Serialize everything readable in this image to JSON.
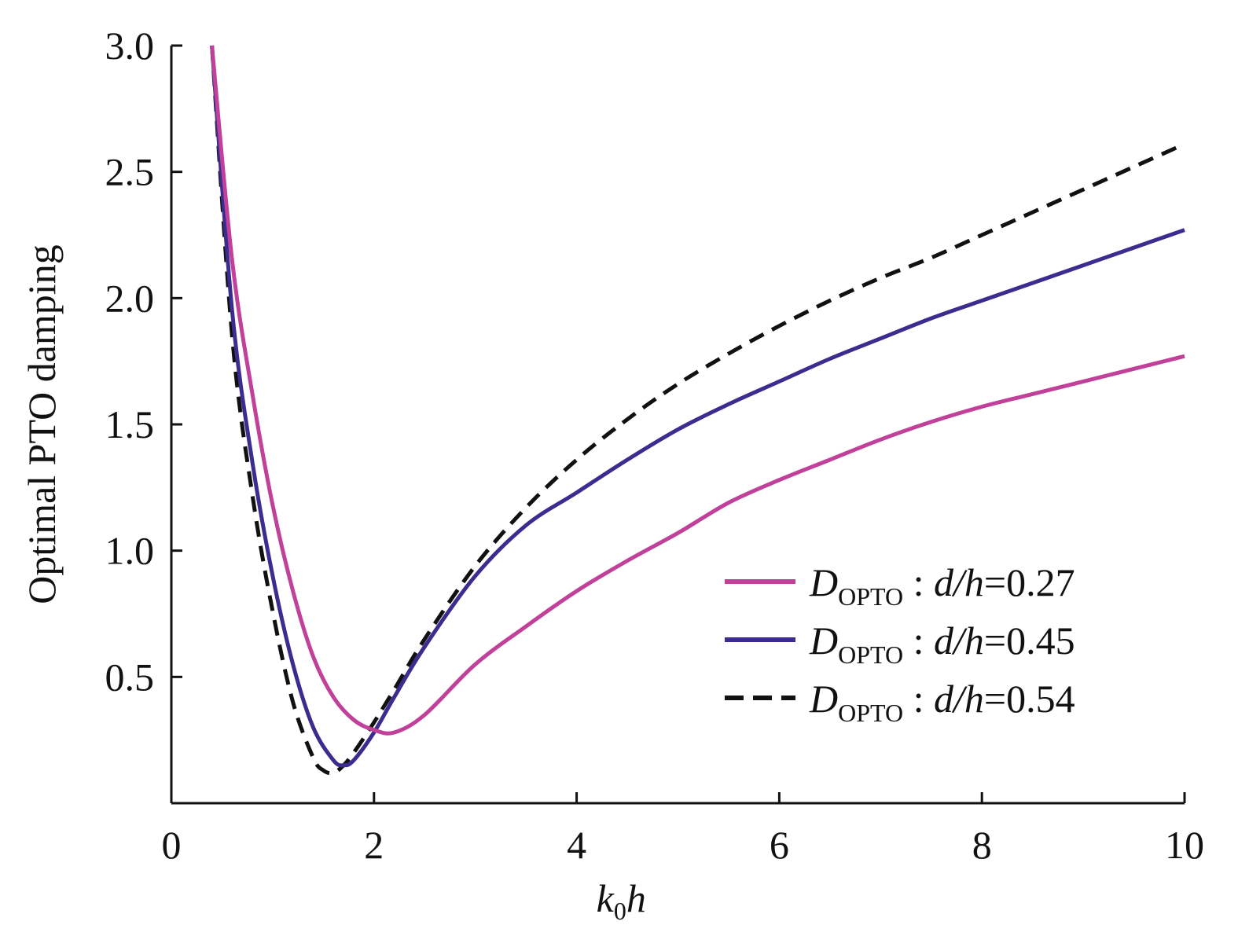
{
  "chart_data": {
    "type": "line",
    "ylabel": "Optimal PTO damping",
    "xlabel": {
      "main": "k",
      "sub": "0",
      "tail": "h"
    },
    "xlim": [
      0,
      10
    ],
    "ylim": [
      0.0,
      3.0
    ],
    "x_ticks": [
      0,
      2,
      4,
      6,
      8,
      10
    ],
    "x_tick_labels": [
      "0",
      "2",
      "4",
      "6",
      "8",
      "10"
    ],
    "y_ticks": [
      0.5,
      1.0,
      1.5,
      2.0,
      2.5,
      3.0
    ],
    "y_tick_labels": [
      "0.5",
      "1.0",
      "1.5",
      "2.0",
      "2.5",
      "3.0"
    ],
    "grid": false,
    "legend_position": "bottom-right",
    "series": [
      {
        "name": "D_OPTO : d/h = 0.27",
        "label": {
          "symbol": "D",
          "sub": "OPTO",
          "param": "d/h",
          "value": "0.27"
        },
        "color": "#c0409a",
        "style": "solid",
        "x": [
          0.4,
          0.6,
          0.8,
          1.0,
          1.2,
          1.4,
          1.6,
          1.8,
          2.0,
          2.2,
          2.5,
          3.0,
          3.5,
          4.0,
          4.5,
          5.0,
          5.5,
          6.0,
          6.5,
          7.0,
          7.5,
          8.0,
          8.5,
          9.0,
          9.5,
          10.0
        ],
        "y": [
          3.0,
          2.15,
          1.62,
          1.18,
          0.84,
          0.58,
          0.42,
          0.33,
          0.29,
          0.28,
          0.35,
          0.55,
          0.7,
          0.84,
          0.96,
          1.07,
          1.19,
          1.28,
          1.36,
          1.44,
          1.51,
          1.57,
          1.62,
          1.67,
          1.72,
          1.77
        ]
      },
      {
        "name": "D_OPTO : d/h = 0.45",
        "label": {
          "symbol": "D",
          "sub": "OPTO",
          "param": "d/h",
          "value": "0.45"
        },
        "color": "#3a2d8f",
        "style": "solid",
        "x": [
          0.4,
          0.6,
          0.8,
          1.0,
          1.2,
          1.4,
          1.6,
          1.7,
          1.8,
          2.0,
          2.2,
          2.5,
          3.0,
          3.5,
          4.0,
          4.5,
          5.0,
          5.5,
          6.0,
          6.5,
          7.0,
          7.5,
          8.0,
          8.5,
          9.0,
          9.5,
          10.0
        ],
        "y": [
          3.0,
          1.95,
          1.35,
          0.9,
          0.55,
          0.3,
          0.17,
          0.15,
          0.17,
          0.28,
          0.42,
          0.62,
          0.9,
          1.1,
          1.23,
          1.36,
          1.48,
          1.58,
          1.67,
          1.76,
          1.84,
          1.92,
          1.99,
          2.06,
          2.13,
          2.2,
          2.27
        ]
      },
      {
        "name": "D_OPTO : d/h = 0.54",
        "label": {
          "symbol": "D",
          "sub": "OPTO",
          "param": "d/h",
          "value": "0.54"
        },
        "color": "#111111",
        "style": "dashed",
        "x": [
          0.4,
          0.6,
          0.8,
          1.0,
          1.2,
          1.4,
          1.5,
          1.6,
          1.7,
          1.8,
          2.0,
          2.2,
          2.5,
          3.0,
          3.5,
          4.0,
          4.5,
          5.0,
          5.5,
          6.0,
          6.5,
          7.0,
          7.5,
          8.0,
          8.5,
          9.0,
          9.5,
          10.0
        ],
        "y": [
          3.0,
          1.85,
          1.22,
          0.76,
          0.4,
          0.18,
          0.13,
          0.12,
          0.15,
          0.2,
          0.32,
          0.45,
          0.65,
          0.94,
          1.17,
          1.36,
          1.52,
          1.66,
          1.78,
          1.89,
          1.99,
          2.08,
          2.16,
          2.25,
          2.34,
          2.43,
          2.52,
          2.61
        ]
      }
    ]
  }
}
